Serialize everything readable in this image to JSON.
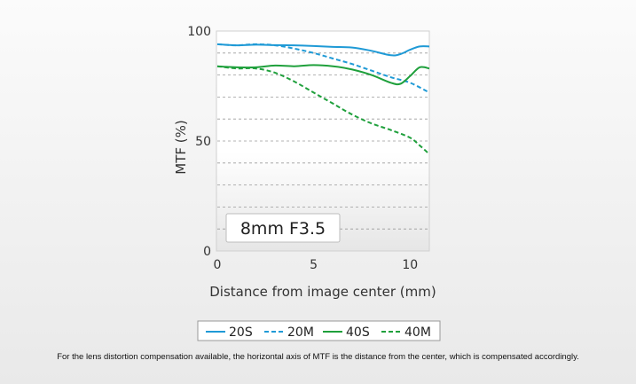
{
  "chart_data": {
    "type": "line",
    "title": "",
    "xlabel": "Distance from image center (mm)",
    "ylabel": "MTF (%)",
    "xlim": [
      0,
      11
    ],
    "ylim": [
      0,
      100
    ],
    "xticks": [
      0,
      5,
      10
    ],
    "yticks": [
      0,
      50,
      100
    ],
    "grid": "horizontal dashed",
    "annotation": "8mm F3.5",
    "legend_position": "bottom",
    "series": [
      {
        "name": "20S",
        "color": "#1f9ad6",
        "dash": "solid",
        "x": [
          0,
          1,
          2,
          3,
          4,
          5,
          6,
          7,
          8,
          9,
          9.5,
          10,
          10.5,
          11
        ],
        "values": [
          94,
          93.5,
          93.8,
          93.6,
          93.5,
          93.2,
          92.8,
          92.5,
          91,
          89,
          89.5,
          91.5,
          93,
          93
        ]
      },
      {
        "name": "20M",
        "color": "#1f9ad6",
        "dash": "dashed",
        "x": [
          0,
          1,
          2,
          3,
          4,
          5,
          6,
          7,
          8,
          9,
          10,
          11
        ],
        "values": [
          94,
          93.5,
          94,
          93.5,
          92,
          90,
          87.5,
          85,
          82,
          79,
          76.5,
          72
        ]
      },
      {
        "name": "40S",
        "color": "#1fa03c",
        "dash": "solid",
        "x": [
          0,
          1,
          2,
          3,
          4,
          5,
          6,
          7,
          8,
          9,
          9.5,
          10,
          10.5,
          11
        ],
        "values": [
          84,
          83.5,
          83.5,
          84.3,
          84,
          84.5,
          84,
          82.5,
          80,
          76.5,
          76,
          79.5,
          83.5,
          83
        ]
      },
      {
        "name": "40M",
        "color": "#1fa03c",
        "dash": "dashed",
        "x": [
          0,
          1,
          2,
          3,
          4,
          5,
          6,
          7,
          8,
          9,
          10,
          10.5,
          11
        ],
        "values": [
          84,
          83,
          83,
          81,
          77,
          72,
          67,
          62,
          58,
          55,
          51.5,
          48,
          44
        ]
      }
    ]
  },
  "footnote": "For the lens distortion compensation available, the horizontal axis of MTF is the distance from the center, which is compensated accordingly."
}
